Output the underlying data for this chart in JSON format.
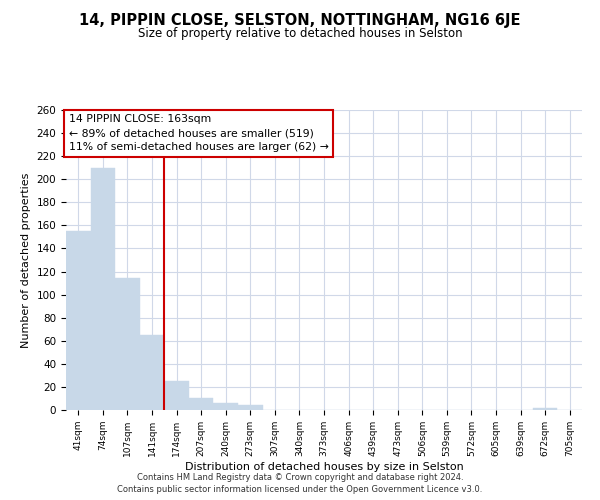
{
  "title": "14, PIPPIN CLOSE, SELSTON, NOTTINGHAM, NG16 6JE",
  "subtitle": "Size of property relative to detached houses in Selston",
  "xlabel": "Distribution of detached houses by size in Selston",
  "ylabel": "Number of detached properties",
  "bar_labels": [
    "41sqm",
    "74sqm",
    "107sqm",
    "141sqm",
    "174sqm",
    "207sqm",
    "240sqm",
    "273sqm",
    "307sqm",
    "340sqm",
    "373sqm",
    "406sqm",
    "439sqm",
    "473sqm",
    "506sqm",
    "539sqm",
    "572sqm",
    "605sqm",
    "639sqm",
    "672sqm",
    "705sqm"
  ],
  "bar_values": [
    155,
    210,
    114,
    65,
    25,
    10,
    6,
    4,
    0,
    0,
    0,
    0,
    0,
    0,
    0,
    0,
    0,
    0,
    0,
    2,
    0
  ],
  "bar_color": "#c8d8e8",
  "bar_edge_color": "#c8d8e8",
  "vline_index": 4,
  "vline_color": "#cc0000",
  "annotation_title": "14 PIPPIN CLOSE: 163sqm",
  "annotation_line1": "← 89% of detached houses are smaller (519)",
  "annotation_line2": "11% of semi-detached houses are larger (62) →",
  "annotation_box_color": "#ffffff",
  "annotation_box_edge": "#cc0000",
  "ylim": [
    0,
    260
  ],
  "yticks": [
    0,
    20,
    40,
    60,
    80,
    100,
    120,
    140,
    160,
    180,
    200,
    220,
    240,
    260
  ],
  "footer1": "Contains HM Land Registry data © Crown copyright and database right 2024.",
  "footer2": "Contains public sector information licensed under the Open Government Licence v3.0.",
  "background_color": "#ffffff",
  "grid_color": "#d0d8e8"
}
